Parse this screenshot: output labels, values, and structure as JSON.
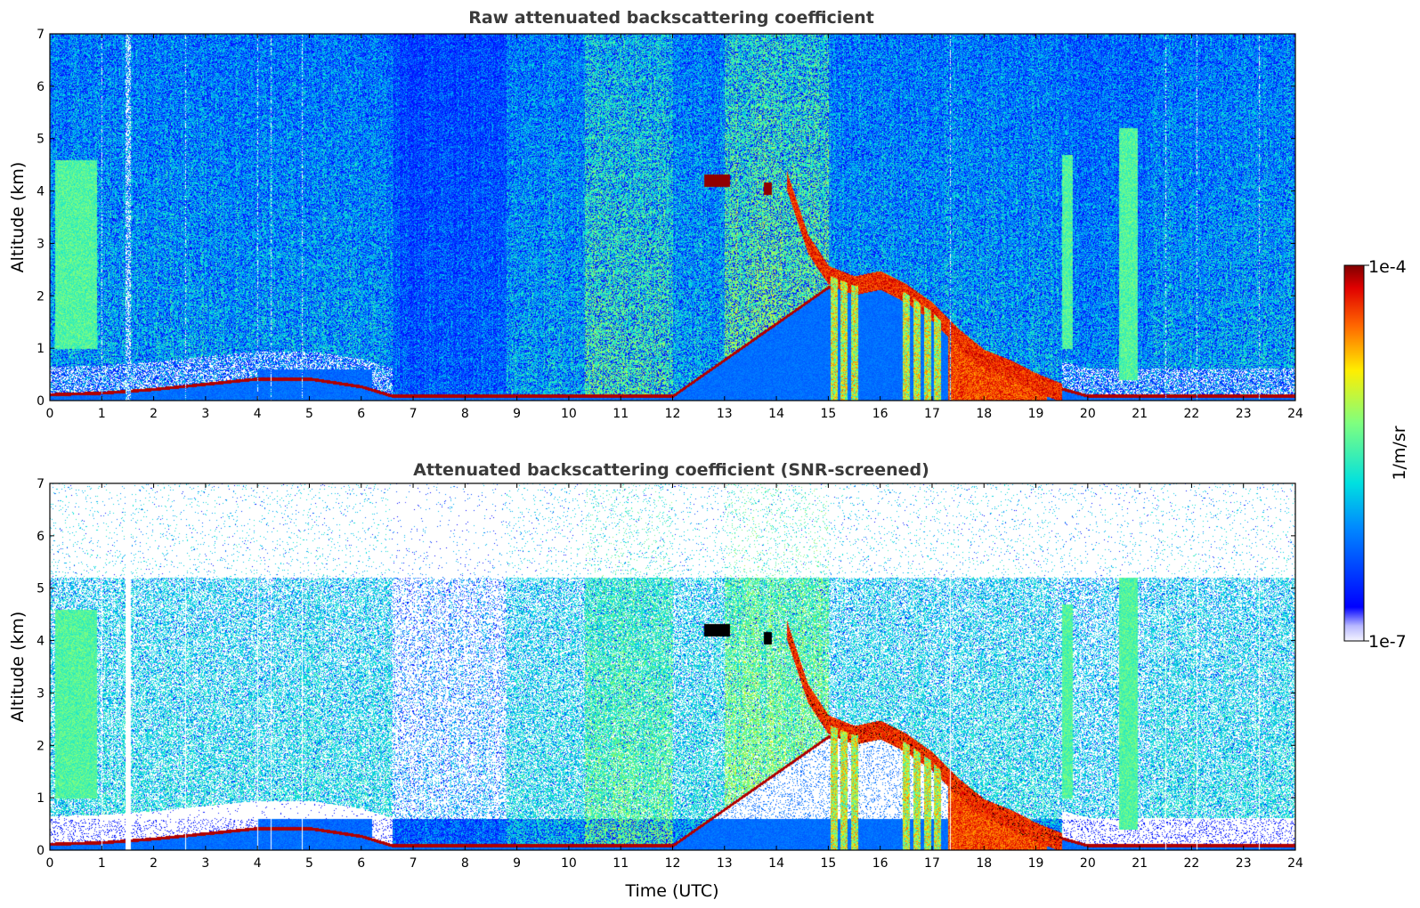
{
  "chart_data": [
    {
      "type": "heatmap",
      "title": "Raw attenuated backscattering coefficient",
      "xlabel": "",
      "ylabel": "Altitude (km)",
      "xlim": [
        0,
        24
      ],
      "ylim": [
        0,
        7
      ],
      "xticks": [
        0,
        1,
        2,
        3,
        4,
        5,
        6,
        7,
        8,
        9,
        10,
        11,
        12,
        13,
        14,
        15,
        16,
        17,
        18,
        19,
        20,
        21,
        22,
        23,
        24
      ],
      "yticks": [
        0,
        1,
        2,
        3,
        4,
        5,
        6,
        7
      ],
      "variant": "raw",
      "features": {
        "boundary_layer_top_km": [
          [
            0,
            0.15
          ],
          [
            1,
            0.18
          ],
          [
            2,
            0.25
          ],
          [
            3,
            0.35
          ],
          [
            4,
            0.45
          ],
          [
            5,
            0.45
          ],
          [
            6,
            0.3
          ],
          [
            6.6,
            0.12
          ],
          [
            8,
            0.12
          ],
          [
            10,
            0.12
          ],
          [
            12,
            0.12
          ],
          [
            15,
            2.2
          ],
          [
            16,
            2.25
          ],
          [
            17,
            1.6
          ],
          [
            18,
            0.8
          ],
          [
            19,
            0.4
          ],
          [
            20,
            0.12
          ],
          [
            24,
            0.12
          ]
        ],
        "cloud_patches": [
          {
            "x": [
              12.6,
              13.1
            ],
            "y_km": 4.2
          },
          {
            "x": [
              13.75,
              13.9
            ],
            "y_km": 4.05
          }
        ],
        "descending_layer_km": [
          [
            14.2,
            4.2
          ],
          [
            14.6,
            3.0
          ],
          [
            15.0,
            2.4
          ],
          [
            15.5,
            2.2
          ],
          [
            16.0,
            2.3
          ],
          [
            16.5,
            2.05
          ],
          [
            17.0,
            1.7
          ],
          [
            17.5,
            1.2
          ],
          [
            18.0,
            0.8
          ],
          [
            18.5,
            0.6
          ],
          [
            19.0,
            0.35
          ],
          [
            19.5,
            0.15
          ]
        ],
        "precipitation_shafts_x": [
          15.1,
          15.3,
          15.5,
          16.5,
          16.7,
          16.9,
          17.1
        ]
      }
    },
    {
      "type": "heatmap",
      "title": "Attenuated backscattering coefficient (SNR-screened)",
      "xlabel": "Time (UTC)",
      "ylabel": "Altitude (km)",
      "xlim": [
        0,
        24
      ],
      "ylim": [
        0,
        7
      ],
      "xticks": [
        0,
        1,
        2,
        3,
        4,
        5,
        6,
        7,
        8,
        9,
        10,
        11,
        12,
        13,
        14,
        15,
        16,
        17,
        18,
        19,
        20,
        21,
        22,
        23,
        24
      ],
      "yticks": [
        0,
        1,
        2,
        3,
        4,
        5,
        6,
        7
      ],
      "variant": "screened"
    }
  ],
  "colorbar": {
    "label": "1/m/sr",
    "max_label": "1e-4",
    "min_label": "1e-7",
    "vmin": 1e-07,
    "vmax": 0.0001,
    "scale": "log",
    "colormap": "jet"
  }
}
